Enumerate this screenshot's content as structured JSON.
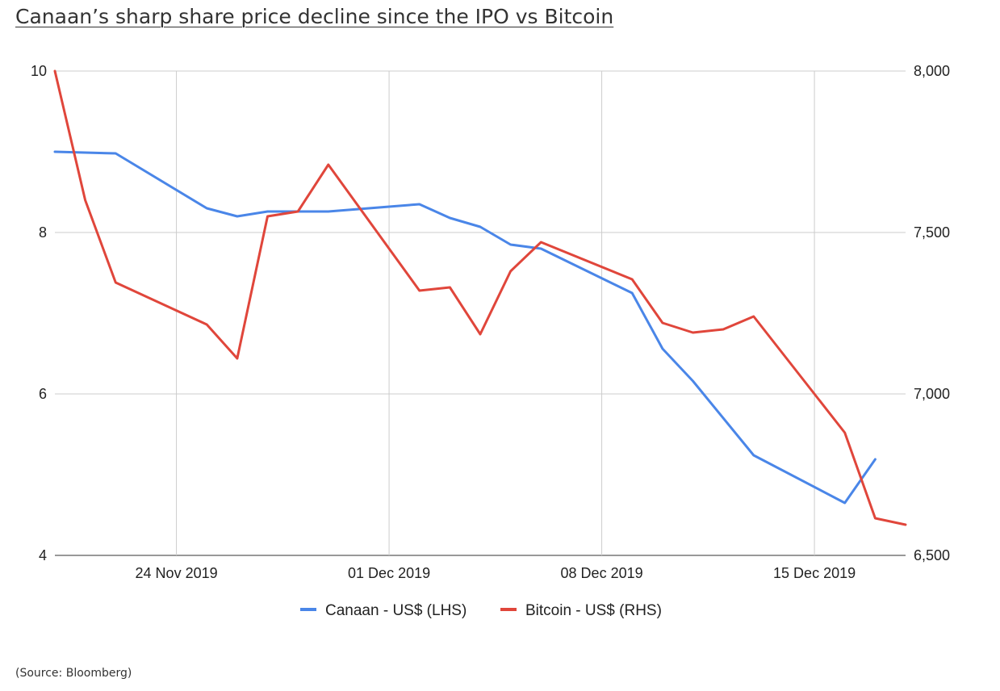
{
  "title": "Canaan’s sharp share price decline since the IPO vs Bitcoin",
  "source": "(Source: Bloomberg)",
  "chart_data": {
    "type": "line",
    "x": [
      "2019-11-20",
      "2019-11-21",
      "2019-11-22",
      "2019-11-25",
      "2019-11-26",
      "2019-11-27",
      "2019-11-28",
      "2019-11-29",
      "2019-12-02",
      "2019-12-03",
      "2019-12-04",
      "2019-12-05",
      "2019-12-06",
      "2019-12-09",
      "2019-12-10",
      "2019-12-11",
      "2019-12-12",
      "2019-12-13",
      "2019-12-16",
      "2019-12-17",
      "2019-12-18"
    ],
    "series": [
      {
        "name": "Canaan - US$ (LHS)",
        "axis": "left",
        "color": "#4a86e8",
        "values": [
          9.0,
          null,
          8.98,
          8.3,
          8.2,
          8.26,
          8.26,
          8.26,
          8.35,
          8.18,
          8.07,
          7.85,
          7.8,
          7.25,
          6.56,
          6.16,
          null,
          5.24,
          4.65,
          5.19,
          null
        ]
      },
      {
        "name": "Bitcoin - US$ (RHS)",
        "axis": "right",
        "color": "#e0463b",
        "values": [
          8000,
          7600,
          7345,
          7215,
          7110,
          7550,
          7565,
          7710,
          7320,
          7330,
          7185,
          7380,
          7470,
          7355,
          7220,
          7190,
          7200,
          7240,
          6880,
          6615,
          6595
        ]
      }
    ],
    "x_ticks": [
      {
        "date": "2019-11-24",
        "label": "24 Nov 2019"
      },
      {
        "date": "2019-12-01",
        "label": "01 Dec 2019"
      },
      {
        "date": "2019-12-08",
        "label": "08 Dec 2019"
      },
      {
        "date": "2019-12-15",
        "label": "15 Dec 2019"
      }
    ],
    "xlim": [
      "2019-11-20",
      "2019-12-18"
    ],
    "y_left": {
      "ylim": [
        4,
        10
      ],
      "ticks": [
        4,
        6,
        8,
        10
      ],
      "tick_labels": [
        "4",
        "6",
        "8",
        "10"
      ]
    },
    "y_right": {
      "ylim": [
        6500,
        8000
      ],
      "ticks": [
        6500,
        7000,
        7500,
        8000
      ],
      "tick_labels": [
        "6,500",
        "7,000",
        "7,500",
        "8,000"
      ]
    },
    "grid": true,
    "legend_position": "bottom",
    "grid_color": "#cccccc"
  }
}
